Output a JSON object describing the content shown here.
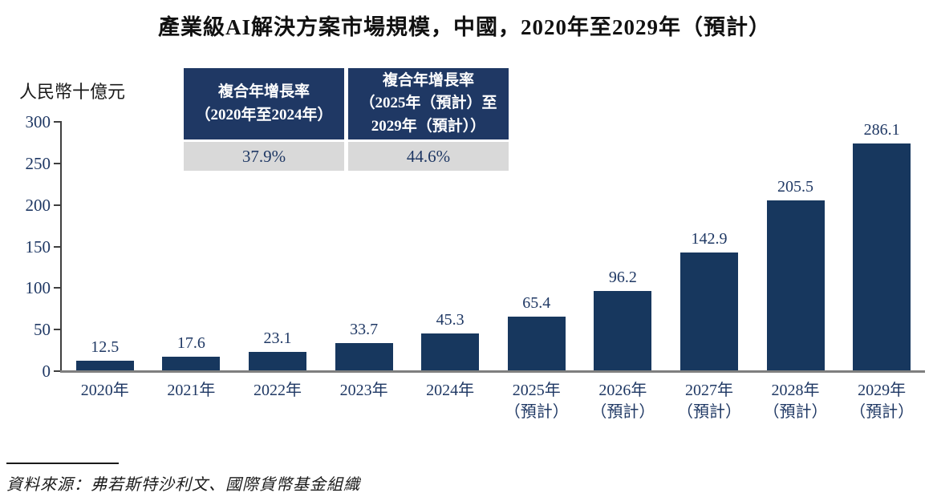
{
  "chart_data": {
    "type": "bar",
    "title": "產業級AI解決方案市場規模，中國，2020年至2029年（預計）",
    "unit_label": "人民幣十億元",
    "categories": [
      "2020年",
      "2021年",
      "2022年",
      "2023年",
      "2024年",
      "2025年\n（預計）",
      "2026年\n（預計）",
      "2027年\n（預計）",
      "2028年\n（預計）",
      "2029年\n（預計）"
    ],
    "values": [
      12.5,
      17.6,
      23.1,
      33.7,
      45.3,
      65.4,
      96.2,
      142.9,
      205.5,
      286.1
    ],
    "ylim": [
      0,
      300
    ],
    "yticks": [
      0,
      50,
      100,
      150,
      200,
      250,
      300
    ],
    "grid": false,
    "legend": "none",
    "bar_color": "#17375E",
    "label_color": "#1F3864"
  },
  "cagr_table": {
    "header_bg": "#1F3864",
    "value_bg": "#D9D9D9",
    "columns": [
      {
        "header": "複合年增長率\n（2020年至2024年）",
        "value": "37.9%"
      },
      {
        "header": "複合年增長率\n（2025年（預計）至\n2029年（預計））",
        "value": "44.6%"
      }
    ]
  },
  "source": {
    "text": "資料來源：弗若斯特沙利文、國際貨幣基金組織"
  }
}
